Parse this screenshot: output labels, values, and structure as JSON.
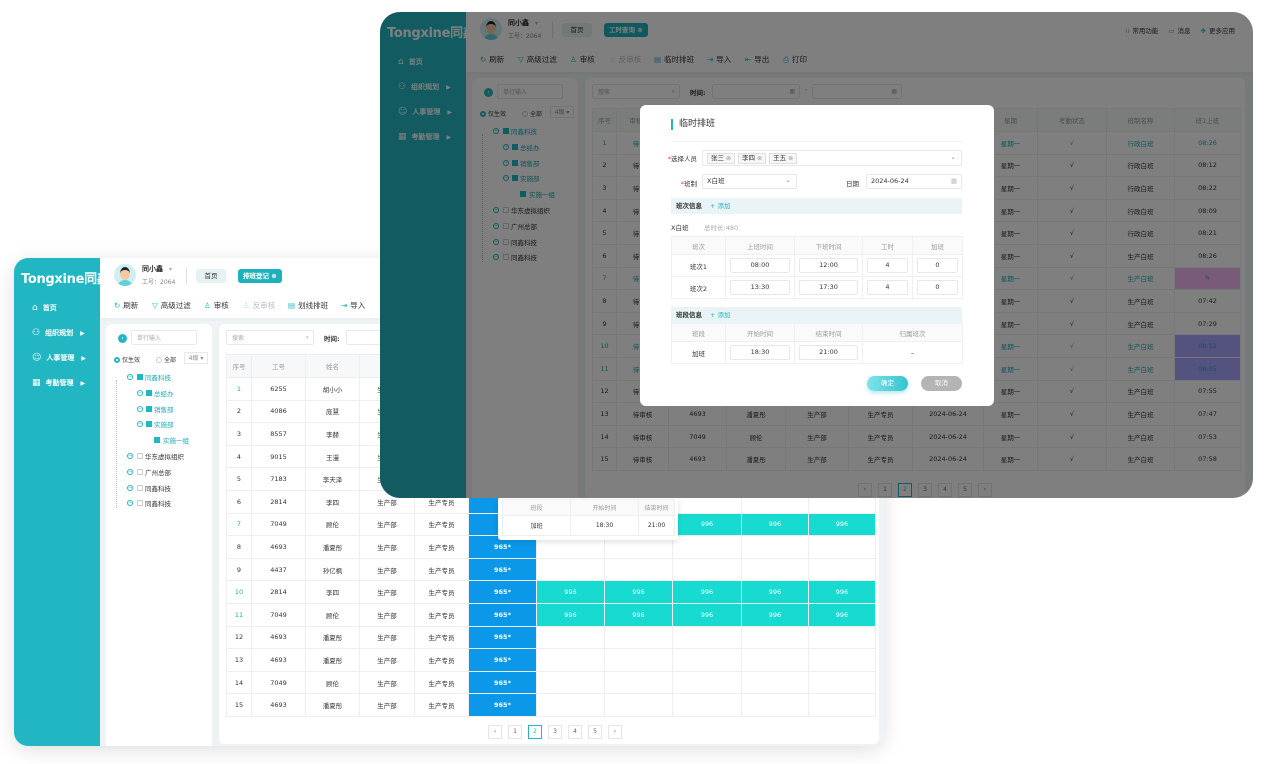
{
  "colors": {
    "brand": "#22b6c3",
    "blue_cell": "#0b98e8",
    "teal_cell": "#17dbd1",
    "pink_cell": "#f2b6ef",
    "purple_cell": "#a9a6ff"
  },
  "back_window": {
    "logo": "Tongxine同鑫",
    "sidebar": [
      {
        "label": "首页",
        "icon": "home-icon",
        "submenu": false
      },
      {
        "label": "组织规划",
        "icon": "org-chart-icon",
        "submenu": true
      },
      {
        "label": "人事管理",
        "icon": "people-icon",
        "submenu": true
      },
      {
        "label": "考勤管理",
        "icon": "calendar-icon",
        "submenu": true
      }
    ],
    "user": {
      "name": "同小鑫",
      "id": "工号：2064"
    },
    "home_button": "首页",
    "active_tab": "排班登记",
    "header_right": [],
    "toolbar": [
      {
        "label": "刷新",
        "icon": "refresh-icon",
        "disabled": false
      },
      {
        "label": "高级过滤",
        "icon": "filter-icon",
        "disabled": false
      },
      {
        "label": "审核",
        "icon": "audit-icon",
        "disabled": false
      },
      {
        "label": "反审核",
        "icon": "unaudit-icon",
        "disabled": true
      },
      {
        "label": "划线排班",
        "icon": "schedule-icon",
        "disabled": false
      },
      {
        "label": "导入",
        "icon": "import-icon",
        "disabled": false
      }
    ],
    "tree": {
      "placeholder": "单行输入",
      "radio_active": "仅生效",
      "radio_all": "全部",
      "level": "4级",
      "items": [
        {
          "label": "同鑫科技",
          "level": 0,
          "checked": true
        },
        {
          "label": "总经办",
          "level": 1,
          "checked": true
        },
        {
          "label": "销售部",
          "level": 1,
          "checked": true
        },
        {
          "label": "实施部",
          "level": 1,
          "checked": true
        },
        {
          "label": "实施一组",
          "level": 2,
          "checked": true
        },
        {
          "label": "华东虚拟组织",
          "level": 0,
          "checked": false
        },
        {
          "label": "广州总部",
          "level": 0,
          "checked": false
        },
        {
          "label": "同鑫科技",
          "level": 0,
          "checked": false
        },
        {
          "label": "同鑫科技",
          "level": 0,
          "checked": false
        }
      ]
    },
    "search_placeholder": "搜索",
    "time_label": "时间:",
    "table": {
      "headers": [
        "序号",
        "工号",
        "姓名",
        "",
        "",
        "",
        "",
        "",
        "",
        "",
        ""
      ],
      "rows": [
        {
          "selected": true,
          "cells": [
            "1",
            "6255",
            "胡小小",
            "生产部",
            "",
            "",
            "",
            "",
            "",
            "",
            ""
          ]
        },
        {
          "selected": false,
          "cells": [
            "2",
            "4086",
            "庞慧",
            "生产部",
            "",
            "",
            "",
            "",
            "",
            "",
            ""
          ]
        },
        {
          "selected": false,
          "cells": [
            "3",
            "8557",
            "李赫",
            "生产部",
            "",
            "",
            "",
            "",
            "",
            "",
            ""
          ]
        },
        {
          "selected": false,
          "cells": [
            "4",
            "9015",
            "王漫",
            "生产部",
            "",
            "",
            "",
            "",
            "",
            "",
            ""
          ]
        },
        {
          "selected": false,
          "cells": [
            "5",
            "7183",
            "李天泽",
            "生产部",
            "",
            "",
            "",
            "",
            "",
            "",
            ""
          ]
        },
        {
          "selected": false,
          "cells": [
            "6",
            "2814",
            "李四",
            "生产部",
            "生产专员",
            "",
            "",
            "",
            "",
            "",
            ""
          ]
        },
        {
          "selected": true,
          "cells": [
            "7",
            "7049",
            "顾伦",
            "生产部",
            "生产专员",
            "",
            "996",
            "996",
            "996",
            "996",
            "996"
          ]
        },
        {
          "selected": false,
          "cells": [
            "8",
            "4693",
            "潘夏彤",
            "生产部",
            "生产专员",
            "965*",
            "",
            "",
            "",
            "",
            ""
          ]
        },
        {
          "selected": false,
          "cells": [
            "9",
            "4437",
            "孙亿枫",
            "生产部",
            "生产专员",
            "965*",
            "",
            "",
            "",
            "",
            ""
          ]
        },
        {
          "selected": true,
          "cells": [
            "10",
            "2814",
            "李四",
            "生产部",
            "生产专员",
            "965*",
            "996",
            "996",
            "996",
            "996",
            "996"
          ]
        },
        {
          "selected": true,
          "cells": [
            "11",
            "7049",
            "顾伦",
            "生产部",
            "生产专员",
            "965*",
            "996",
            "996",
            "996",
            "996",
            "996"
          ]
        },
        {
          "selected": false,
          "cells": [
            "12",
            "4693",
            "潘夏彤",
            "生产部",
            "生产专员",
            "965*",
            "",
            "",
            "",
            "",
            ""
          ]
        },
        {
          "selected": false,
          "cells": [
            "13",
            "4693",
            "潘夏彤",
            "生产部",
            "生产专员",
            "965*",
            "",
            "",
            "",
            "",
            ""
          ]
        },
        {
          "selected": false,
          "cells": [
            "14",
            "7049",
            "顾伦",
            "生产部",
            "生产专员",
            "965*",
            "",
            "",
            "",
            "",
            ""
          ]
        },
        {
          "selected": false,
          "cells": [
            "15",
            "4693",
            "潘夏彤",
            "生产部",
            "生产专员",
            "965*",
            "",
            "",
            "",
            "",
            ""
          ]
        }
      ]
    },
    "popover": {
      "headers": [
        "班段",
        "开始时间",
        "结束时间"
      ],
      "row": [
        "加班",
        "18:30",
        "21:00"
      ]
    },
    "pagination": {
      "prev": "‹",
      "next": "›",
      "pages": [
        "1",
        "2",
        "3",
        "4",
        "5"
      ],
      "current": "2"
    }
  },
  "front_window": {
    "logo": "Tongxine同鑫",
    "sidebar": [
      {
        "label": "首页",
        "icon": "home-icon",
        "submenu": false
      },
      {
        "label": "组织规划",
        "icon": "org-chart-icon",
        "submenu": true
      },
      {
        "label": "人事管理",
        "icon": "people-icon",
        "submenu": true
      },
      {
        "label": "考勤管理",
        "icon": "calendar-icon",
        "submenu": true
      }
    ],
    "user": {
      "name": "同小鑫",
      "id": "工号：2064"
    },
    "home_button": "首页",
    "active_tab": "工时查询",
    "header_right": [
      {
        "label": "常用功能",
        "icon": "grid-icon"
      },
      {
        "label": "消息",
        "icon": "message-icon"
      },
      {
        "label": "更多应用",
        "icon": "apps-icon"
      }
    ],
    "toolbar": [
      {
        "label": "刷新",
        "icon": "refresh-icon",
        "disabled": false
      },
      {
        "label": "高级过滤",
        "icon": "filter-icon",
        "disabled": false
      },
      {
        "label": "审核",
        "icon": "audit-icon",
        "disabled": false
      },
      {
        "label": "反审核",
        "icon": "unaudit-icon",
        "disabled": true
      },
      {
        "label": "临时排班",
        "icon": "schedule-icon",
        "disabled": false
      },
      {
        "label": "导入",
        "icon": "import-icon",
        "disabled": false
      },
      {
        "label": "导出",
        "icon": "export-icon",
        "disabled": false
      },
      {
        "label": "打印",
        "icon": "print-icon",
        "disabled": false
      }
    ],
    "tree": {
      "placeholder": "单行输入",
      "radio_active": "仅生效",
      "radio_all": "全部",
      "level": "4级",
      "items": [
        {
          "label": "同鑫科技",
          "level": 0,
          "checked": true
        },
        {
          "label": "总经办",
          "level": 1,
          "checked": true
        },
        {
          "label": "销售部",
          "level": 1,
          "checked": true
        },
        {
          "label": "实施部",
          "level": 1,
          "checked": true
        },
        {
          "label": "实施一组",
          "level": 2,
          "checked": true
        },
        {
          "label": "华东虚拟组织",
          "level": 0,
          "checked": false
        },
        {
          "label": "广州总部",
          "level": 0,
          "checked": false
        },
        {
          "label": "同鑫科技",
          "level": 0,
          "checked": false
        },
        {
          "label": "同鑫科技",
          "level": 0,
          "checked": false
        }
      ]
    },
    "search_placeholder": "搜索",
    "time_label": "时间:",
    "table": {
      "headers": [
        "序号",
        "审核状态",
        "",
        "",
        "",
        "",
        "",
        "星期",
        "考勤状态",
        "班制名称",
        "班1上班"
      ],
      "rows": [
        {
          "selected": true,
          "mark": "",
          "cells": [
            "1",
            "待审核",
            "",
            "",
            "",
            "",
            "",
            "星期一",
            "√",
            "行政白班",
            "08:26"
          ]
        },
        {
          "selected": false,
          "mark": "",
          "cells": [
            "2",
            "待审核",
            "",
            "",
            "",
            "",
            "",
            "星期一",
            "√",
            "行政白班",
            "08:12"
          ]
        },
        {
          "selected": false,
          "mark": "",
          "cells": [
            "3",
            "待审核",
            "",
            "",
            "",
            "",
            "",
            "星期一",
            "√",
            "行政白班",
            "08:22"
          ]
        },
        {
          "selected": false,
          "mark": "",
          "cells": [
            "4",
            "待审核",
            "",
            "",
            "",
            "",
            "",
            "星期一",
            "√",
            "行政白班",
            "08:09"
          ]
        },
        {
          "selected": false,
          "mark": "",
          "cells": [
            "5",
            "待审核",
            "",
            "",
            "",
            "",
            "",
            "星期一",
            "√",
            "行政白班",
            "08:21"
          ]
        },
        {
          "selected": false,
          "mark": "",
          "cells": [
            "6",
            "待审核",
            "",
            "",
            "",
            "",
            "",
            "星期一",
            "√",
            "生产白班",
            "08:26"
          ]
        },
        {
          "selected": true,
          "mark": "pink",
          "cells": [
            "7",
            "待审核",
            "",
            "",
            "",
            "",
            "",
            "星期一",
            "√",
            "生产白班",
            ""
          ]
        },
        {
          "selected": false,
          "mark": "",
          "cells": [
            "8",
            "待审核",
            "",
            "",
            "",
            "",
            "",
            "星期一",
            "√",
            "生产白班",
            "07:42"
          ]
        },
        {
          "selected": false,
          "mark": "",
          "cells": [
            "9",
            "待审核",
            "",
            "",
            "",
            "",
            "",
            "星期一",
            "√",
            "生产白班",
            "07:29"
          ]
        },
        {
          "selected": true,
          "mark": "purple",
          "cells": [
            "10",
            "待审核",
            "",
            "",
            "",
            "",
            "",
            "星期一",
            "√",
            "生产白班",
            "08:12"
          ]
        },
        {
          "selected": true,
          "mark": "purple",
          "cells": [
            "11",
            "待审核",
            "",
            "",
            "",
            "",
            "",
            "星期一",
            "√",
            "生产白班",
            "08:05"
          ]
        },
        {
          "selected": false,
          "mark": "",
          "cells": [
            "12",
            "待审核",
            "",
            "",
            "",
            "",
            "",
            "星期一",
            "√",
            "生产白班",
            "07:55"
          ]
        },
        {
          "selected": false,
          "mark": "",
          "cells": [
            "13",
            "待审核",
            "4693",
            "潘夏彤",
            "生产部",
            "生产专员",
            "2024-06-24",
            "星期一",
            "√",
            "生产白班",
            "07:47"
          ]
        },
        {
          "selected": false,
          "mark": "",
          "cells": [
            "14",
            "待审核",
            "7049",
            "顾伦",
            "生产部",
            "生产专员",
            "2024-06-24",
            "星期一",
            "√",
            "生产白班",
            "07:53"
          ]
        },
        {
          "selected": false,
          "mark": "",
          "cells": [
            "15",
            "待审核",
            "4693",
            "潘夏彤",
            "生产部",
            "生产专员",
            "2024-06-24",
            "星期一",
            "√",
            "生产白班",
            "07:58"
          ]
        }
      ]
    },
    "pagination": {
      "prev": "‹",
      "next": "›",
      "pages": [
        "1",
        "2",
        "3",
        "4",
        "5"
      ],
      "current": "2"
    }
  },
  "modal": {
    "title": "临时排班",
    "staff_label": "选择人员",
    "staff": [
      "张三",
      "李四",
      "王五"
    ],
    "shift_label": "班制",
    "shift_value": "X白班",
    "date_label": "日期",
    "date_value": "2024-06-24",
    "section1": {
      "title": "班次信息",
      "add": "+ 添加"
    },
    "shift_name": "X白班",
    "total": "总时长:480",
    "shift_table": {
      "headers": [
        "班次",
        "上班时间",
        "下班时间",
        "工时",
        "加班"
      ],
      "rows": [
        [
          "班次1",
          "08:00",
          "12:00",
          "4",
          "0"
        ],
        [
          "班次2",
          "13:30",
          "17:30",
          "4",
          "0"
        ]
      ]
    },
    "section2": {
      "title": "班段信息",
      "add": "+ 添加"
    },
    "segment_table": {
      "headers": [
        "班段",
        "开始时间",
        "结束时间",
        "归属班次"
      ],
      "rows": [
        [
          "加班",
          "18:30",
          "21:00",
          "–"
        ]
      ]
    },
    "confirm": "确定",
    "cancel": "取消"
  }
}
